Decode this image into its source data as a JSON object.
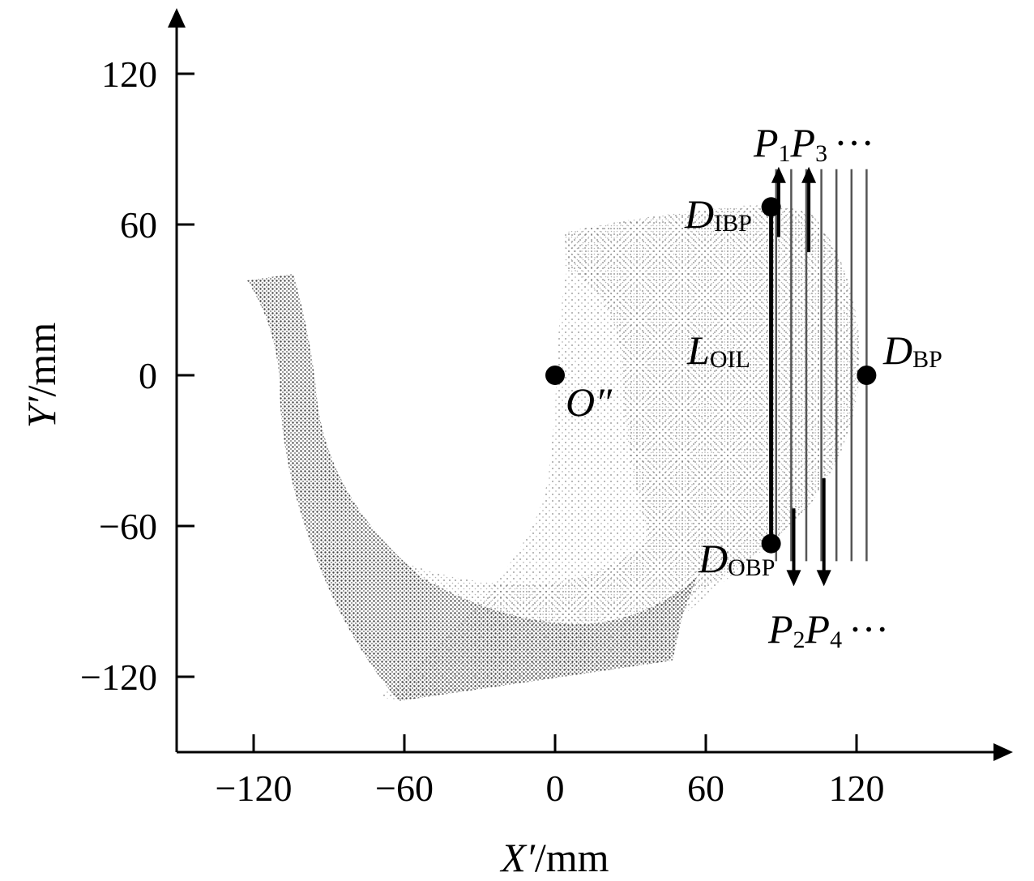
{
  "chart_data": {
    "type": "scatter",
    "xlabel_var": "X′",
    "xlabel_unit": "/mm",
    "ylabel_var": "Y′",
    "ylabel_unit": "/mm",
    "xlim": [
      -150,
      180
    ],
    "ylim": [
      -150,
      145
    ],
    "x_ticks": [
      -120,
      -60,
      0,
      60,
      120
    ],
    "y_ticks": [
      -120,
      -60,
      0,
      60,
      120
    ],
    "x_tick_labels": [
      "−120",
      "−60",
      "0",
      "60",
      "120"
    ],
    "y_tick_labels": [
      "−120",
      "−60",
      "0",
      "60",
      "120"
    ],
    "grid": false,
    "points": [
      {
        "id": "O",
        "x": 0,
        "y": 0,
        "label": "O″"
      },
      {
        "id": "IBP",
        "x": 86,
        "y": 67,
        "label_main": "D",
        "label_sub": "IBP"
      },
      {
        "id": "OBP",
        "x": 86,
        "y": -67,
        "label_main": "D",
        "label_sub": "OBP"
      },
      {
        "id": "BP",
        "x": 124,
        "y": 0,
        "label_main": "D",
        "label_sub": "BP"
      }
    ],
    "oil_line": {
      "x": 86,
      "y1": -67,
      "y2": 67,
      "label_main": "L",
      "label_sub": "OIL"
    },
    "scan_lines_x": [
      88,
      94,
      100,
      106,
      112,
      118,
      124
    ],
    "scan_lines_y": [
      -74,
      82
    ],
    "up_arrows": [
      {
        "x": 89,
        "y_from": 55,
        "y_to": 83
      },
      {
        "x": 101,
        "y_from": 49,
        "y_to": 83
      }
    ],
    "down_arrows": [
      {
        "x": 95,
        "y_from": -53,
        "y_to": -84
      },
      {
        "x": 107,
        "y_from": -41,
        "y_to": -84
      }
    ],
    "top_label": {
      "p1": "P",
      "s1": "1",
      "p2": "P",
      "s2": "3",
      "dots": "···"
    },
    "bottom_label": {
      "p1": "P",
      "s1": "2",
      "p2": "P",
      "s2": "4",
      "dots": "···"
    }
  }
}
